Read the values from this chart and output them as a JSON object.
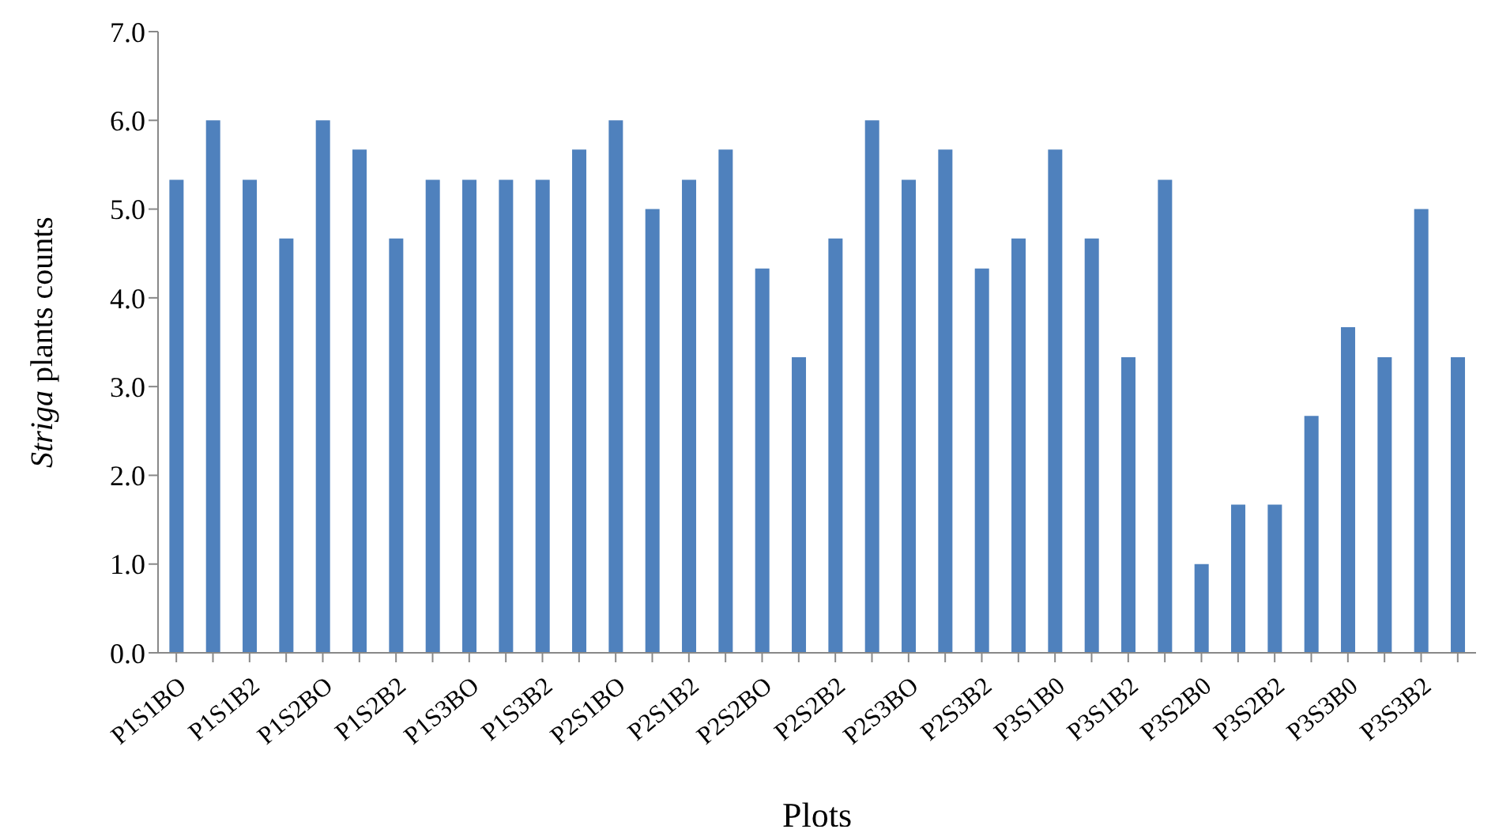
{
  "chart_data": {
    "type": "bar",
    "xlabel": "Plots",
    "ylabel": "Striga plants counts",
    "categories": [
      "P1S1BO",
      null,
      "P1S1B2",
      null,
      "P1S2BO",
      null,
      "P1S2B2",
      null,
      "P1S3BO",
      null,
      "P1S3B2",
      null,
      "P2S1BO",
      null,
      "P2S1B2",
      null,
      "P2S2BO",
      null,
      "P2S2B2",
      null,
      "P2S3BO",
      null,
      "P2S3B2",
      null,
      "P3S1B0",
      null,
      "P3S1B2",
      null,
      "P3S2B0",
      null,
      "P3S2B2",
      null,
      "P3S3B0",
      null,
      "P3S3B2",
      null
    ],
    "values": [
      5.33,
      6,
      5.33,
      4.67,
      6,
      5.67,
      4.67,
      5.33,
      5.33,
      5.33,
      5.33,
      5.67,
      6,
      5,
      5.33,
      5.67,
      4.33,
      3.33,
      4.67,
      6,
      5.33,
      5.67,
      4.33,
      4.67,
      5.67,
      4.67,
      3.33,
      5.33,
      1,
      1.67,
      1.67,
      2.67,
      3.67,
      3.33,
      5,
      3.33
    ],
    "color": "#4f81bd",
    "ylim": [
      0,
      7
    ],
    "yticks": [
      {
        "value": 0,
        "label": "0.0"
      },
      {
        "value": 1,
        "label": "1.0"
      },
      {
        "value": 2,
        "label": "2.0"
      },
      {
        "value": 3,
        "label": "3.0"
      },
      {
        "value": 4,
        "label": "4.0"
      },
      {
        "value": 5,
        "label": "5.0"
      },
      {
        "value": 6,
        "label": "6.0"
      },
      {
        "value": 7,
        "label": "7.0"
      }
    ],
    "grid": false,
    "legend": false
  }
}
